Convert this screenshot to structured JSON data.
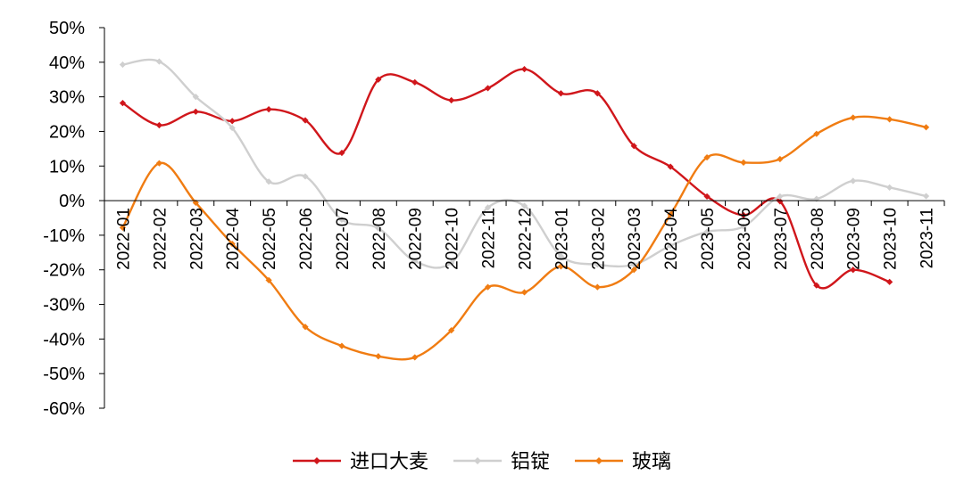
{
  "chart_data": {
    "type": "line",
    "title": "",
    "xlabel": "",
    "ylabel": "",
    "ylim": [
      -60,
      50
    ],
    "y_tick_step": 10,
    "y_tick_format": "percent",
    "grid": false,
    "smooth": true,
    "legend_position": "bottom",
    "categories": [
      "2022-01",
      "2022-02",
      "2022-03",
      "2022-04",
      "2022-05",
      "2022-06",
      "2022-07",
      "2022-08",
      "2022-09",
      "2022-10",
      "2022-11",
      "2022-12",
      "2023-01",
      "2023-02",
      "2023-03",
      "2023-04",
      "2023-05",
      "2023-06",
      "2023-07",
      "2023-08",
      "2023-09",
      "2023-10",
      "2023-11"
    ],
    "series": [
      {
        "name": "进口大麦",
        "color": "#d0161b",
        "values": [
          28.2,
          21.8,
          25.7,
          23.0,
          26.4,
          23.2,
          13.8,
          35.0,
          34.2,
          29.0,
          32.5,
          38.0,
          31.0,
          31.0,
          15.8,
          9.8,
          1.2,
          -4.2,
          -0.2,
          -24.5,
          -20.0,
          -23.5,
          null
        ]
      },
      {
        "name": "铝锭",
        "color": "#cfcfcf",
        "values": [
          39.3,
          40.2,
          30.0,
          21.0,
          5.5,
          7.0,
          -5.5,
          -8.0,
          -17.5,
          -18.0,
          -2.0,
          -1.5,
          -16.0,
          -18.5,
          -18.5,
          -13.0,
          -9.0,
          -7.5,
          1.2,
          0.5,
          5.7,
          3.8,
          1.3
        ]
      },
      {
        "name": "玻璃",
        "color": "#f07c12",
        "values": [
          -7.8,
          10.8,
          -0.6,
          -12.5,
          -23.0,
          -36.5,
          -42.0,
          -45.0,
          -45.3,
          -37.5,
          -25.0,
          -26.5,
          -19.0,
          -25.0,
          -20.0,
          -4.0,
          12.5,
          11.0,
          12.0,
          19.3,
          24.0,
          23.5,
          21.2
        ]
      }
    ]
  }
}
